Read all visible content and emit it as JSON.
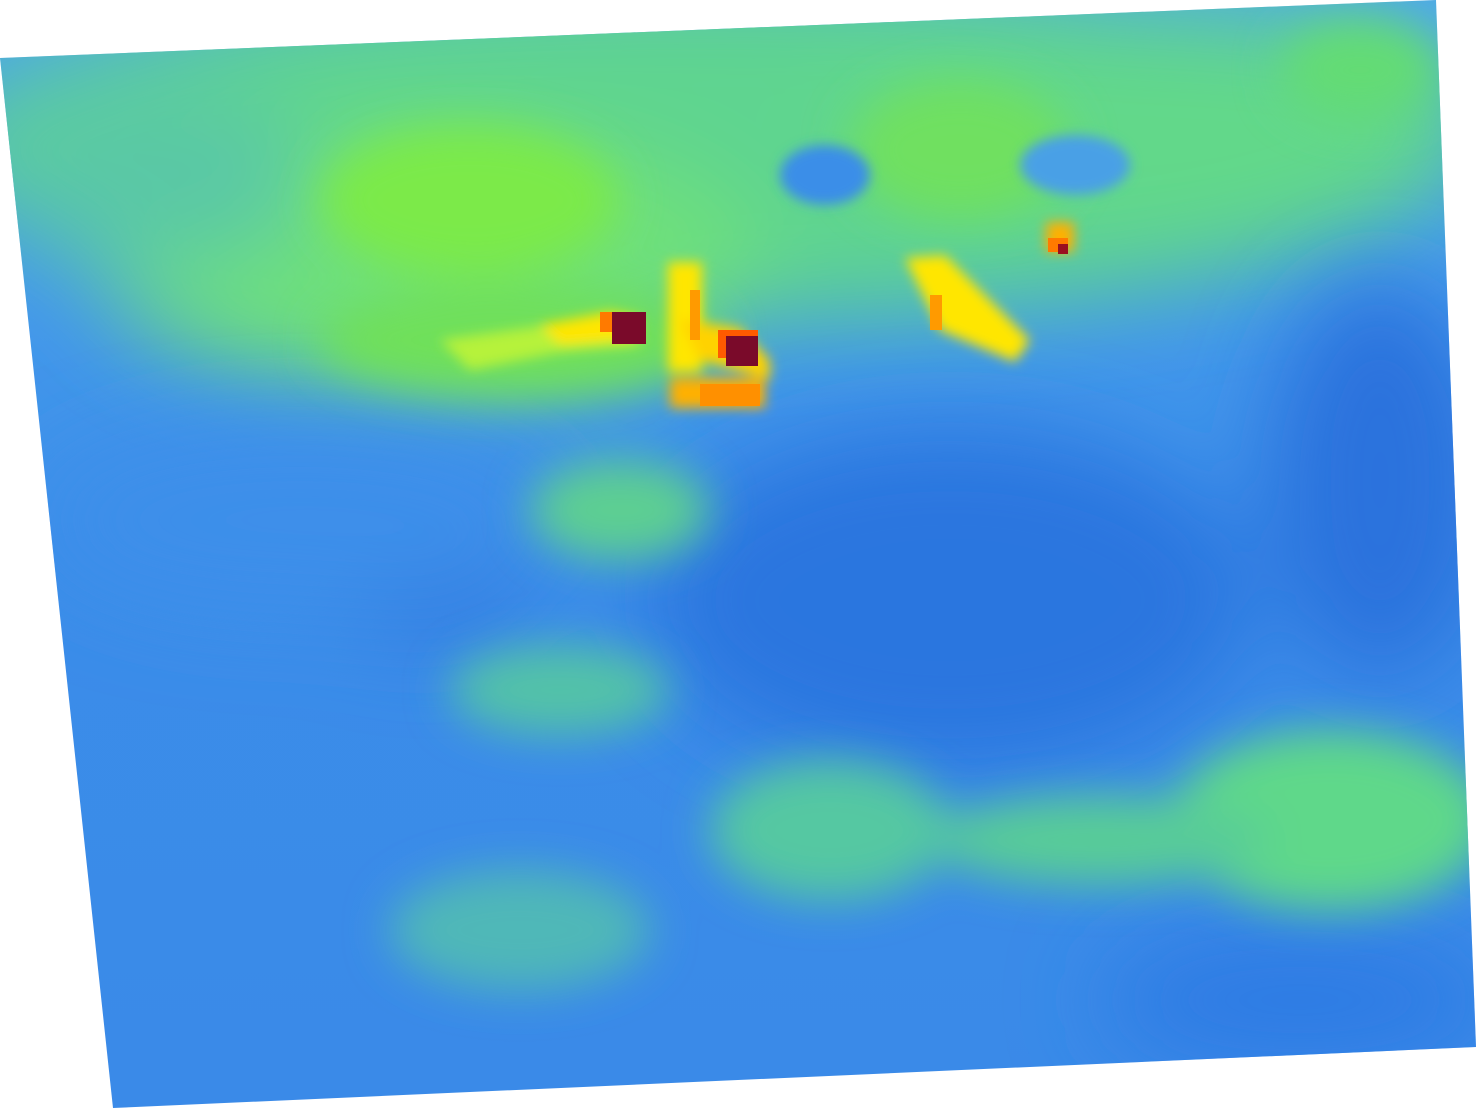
{
  "map": {
    "type": "raster-heatmap",
    "projection": "rotated-quadrilateral",
    "colormap": {
      "stops": [
        "#2f7fe6",
        "#4a9cee",
        "#55c8a8",
        "#58e07a",
        "#7bef3c",
        "#ffee00",
        "#ffa500",
        "#ff5a00",
        "#7a0a2a"
      ]
    },
    "background": "#ffffff",
    "labels": []
  }
}
